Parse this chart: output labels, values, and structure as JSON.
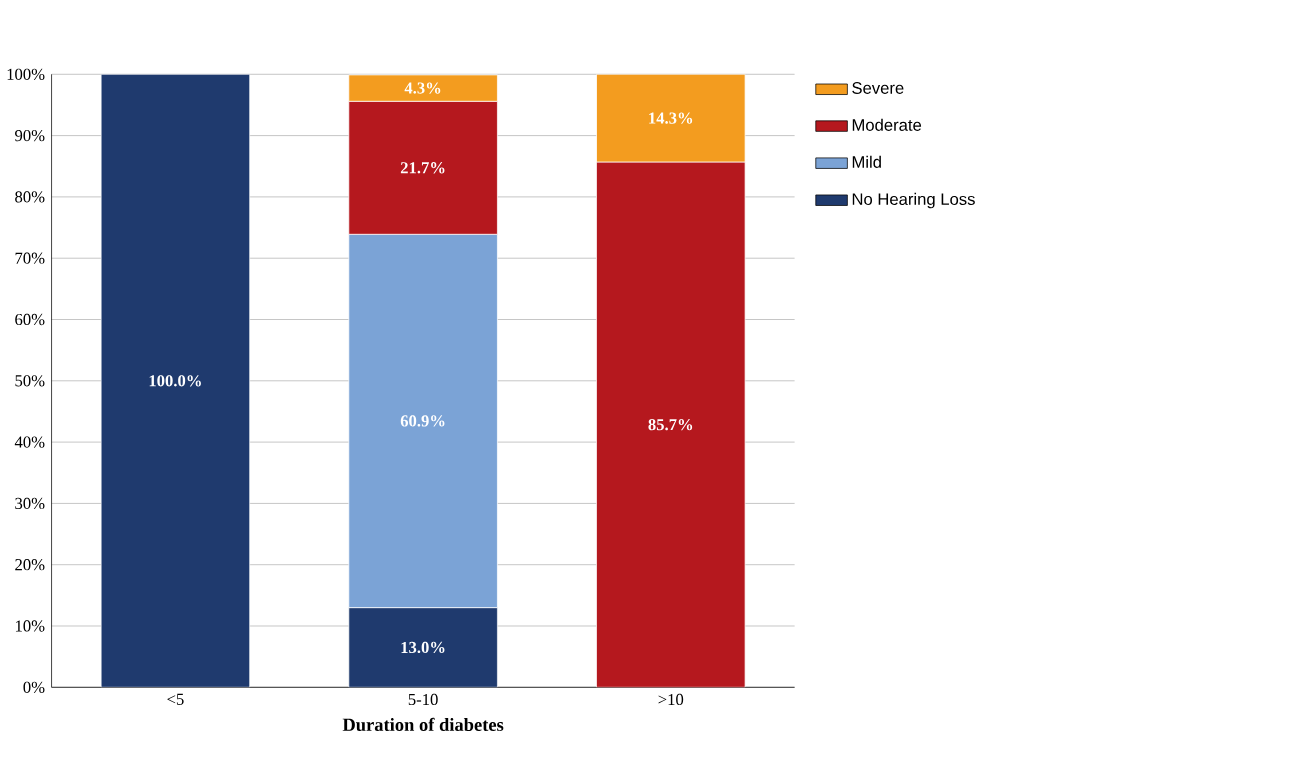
{
  "chart_data": {
    "type": "bar",
    "stacked": true,
    "xlabel": "Duration of diabetes",
    "categories": [
      "<5",
      "5-10",
      ">10"
    ],
    "ylim": [
      0,
      100
    ],
    "yticks": [
      {
        "value": 0,
        "label": "0%"
      },
      {
        "value": 10,
        "label": "10%"
      },
      {
        "value": 20,
        "label": "20%"
      },
      {
        "value": 30,
        "label": "30%"
      },
      {
        "value": 40,
        "label": "40%"
      },
      {
        "value": 50,
        "label": "50%"
      },
      {
        "value": 60,
        "label": "60%"
      },
      {
        "value": 70,
        "label": "70%"
      },
      {
        "value": 80,
        "label": "80%"
      },
      {
        "value": 90,
        "label": "90%"
      },
      {
        "value": 100,
        "label": "100%"
      }
    ],
    "grid": "y",
    "legend": "right",
    "series": [
      {
        "name": "No Hearing Loss",
        "color": "#1f3a6e",
        "values": [
          100.0,
          13.0,
          null
        ],
        "value_labels": [
          "100.0%",
          "13.0%",
          null
        ]
      },
      {
        "name": "Mild",
        "color": "#7ba3d6",
        "values": [
          null,
          60.9,
          null
        ],
        "value_labels": [
          null,
          "60.9%",
          null
        ]
      },
      {
        "name": "Moderate",
        "color": "#b5181e",
        "values": [
          null,
          21.7,
          85.7
        ],
        "value_labels": [
          null,
          "21.7%",
          "85.7%"
        ]
      },
      {
        "name": "Severe",
        "color": "#f39c1f",
        "values": [
          null,
          4.3,
          14.3
        ],
        "value_labels": [
          null,
          "4.3%",
          "14.3%"
        ]
      }
    ]
  }
}
